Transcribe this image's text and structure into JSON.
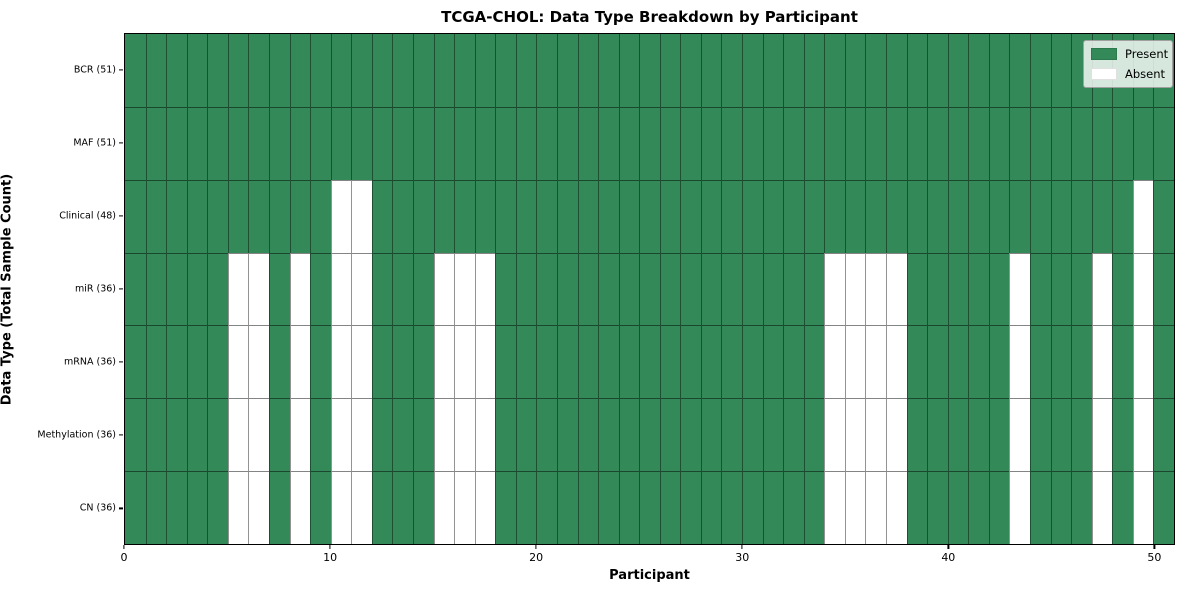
{
  "chart_data": {
    "type": "heatmap",
    "title": "TCGA-CHOL: Data Type Breakdown by Participant",
    "xlabel": "Participant",
    "ylabel": "Data Type (Total Sample Count)",
    "n_participants": 51,
    "x_ticks": [
      0,
      10,
      20,
      30,
      40,
      50
    ],
    "grid": true,
    "legend_position": "upper right",
    "colors": {
      "present": "#338a58",
      "absent": "#ffffff"
    },
    "legend_items": [
      {
        "label": "Present",
        "value": 1,
        "color": "#338a58"
      },
      {
        "label": "Absent",
        "value": 0,
        "color": "#ffffff"
      }
    ],
    "rows": [
      {
        "label": "BCR (51)",
        "data_type": "BCR",
        "total": 51,
        "absent_participants": []
      },
      {
        "label": "MAF (51)",
        "data_type": "MAF",
        "total": 51,
        "absent_participants": []
      },
      {
        "label": "Clinical (48)",
        "data_type": "Clinical",
        "total": 48,
        "absent_participants": [
          10,
          11,
          49
        ]
      },
      {
        "label": "miR (36)",
        "data_type": "miR",
        "total": 36,
        "absent_participants": [
          5,
          6,
          8,
          10,
          11,
          15,
          16,
          17,
          34,
          35,
          36,
          37,
          43,
          47,
          49
        ]
      },
      {
        "label": "mRNA (36)",
        "data_type": "mRNA",
        "total": 36,
        "absent_participants": [
          5,
          6,
          8,
          10,
          11,
          15,
          16,
          17,
          34,
          35,
          36,
          37,
          43,
          47,
          49
        ]
      },
      {
        "label": "Methylation (36)",
        "data_type": "Methylation",
        "total": 36,
        "absent_participants": [
          5,
          6,
          8,
          10,
          11,
          15,
          16,
          17,
          34,
          35,
          36,
          37,
          43,
          47,
          49
        ]
      },
      {
        "label": "CN (36)",
        "data_type": "CN",
        "total": 36,
        "absent_participants": [
          5,
          6,
          8,
          10,
          11,
          15,
          16,
          17,
          34,
          35,
          36,
          37,
          43,
          47,
          49
        ]
      }
    ]
  }
}
